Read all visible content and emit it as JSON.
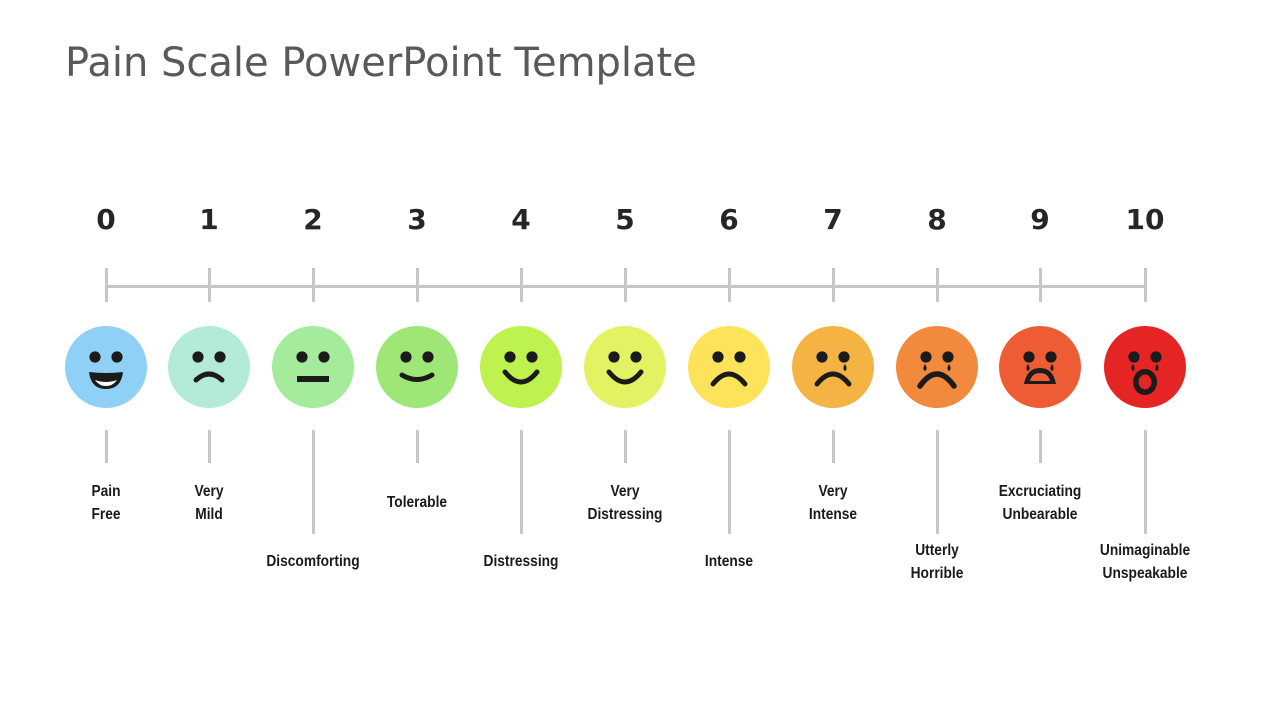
{
  "slide": {
    "title": "Pain Scale PowerPoint Template"
  },
  "scale": {
    "axis_color": "#c6c6c6",
    "levels": [
      {
        "number": "0",
        "line1": "Pain",
        "line2": "Free",
        "color": "#8fd1f6",
        "face": "big-smile-icon"
      },
      {
        "number": "1",
        "line1": "Very",
        "line2": "Mild",
        "color": "#b3ead8",
        "face": "slight-frown-icon"
      },
      {
        "number": "2",
        "line1": "Discomforting",
        "line2": "",
        "color": "#a4eb9c",
        "face": "neutral-face-icon"
      },
      {
        "number": "3",
        "line1": "Tolerable",
        "line2": "",
        "color": "#9ee776",
        "face": "slight-smile-icon"
      },
      {
        "number": "4",
        "line1": "Distressing",
        "line2": "",
        "color": "#bef24f",
        "face": "smile-icon"
      },
      {
        "number": "5",
        "line1": "Very",
        "line2": "Distressing",
        "color": "#e2f262",
        "face": "smile-icon"
      },
      {
        "number": "6",
        "line1": "Intense",
        "line2": "",
        "color": "#fde35a",
        "face": "frown-icon"
      },
      {
        "number": "7",
        "line1": "Very",
        "line2": "Intense",
        "color": "#f5b343",
        "face": "tear-frown-icon"
      },
      {
        "number": "8",
        "line1": "Utterly",
        "line2": "Horrible",
        "color": "#f18a3c",
        "face": "crying-frown-icon"
      },
      {
        "number": "9",
        "line1": "Excruciating",
        "line2": "Unbearable",
        "color": "#ed5c34",
        "face": "grimace-crying-icon"
      },
      {
        "number": "10",
        "line1": "Unimaginable",
        "line2": "Unspeakable",
        "color": "#e52424",
        "face": "screaming-face-icon"
      }
    ]
  }
}
